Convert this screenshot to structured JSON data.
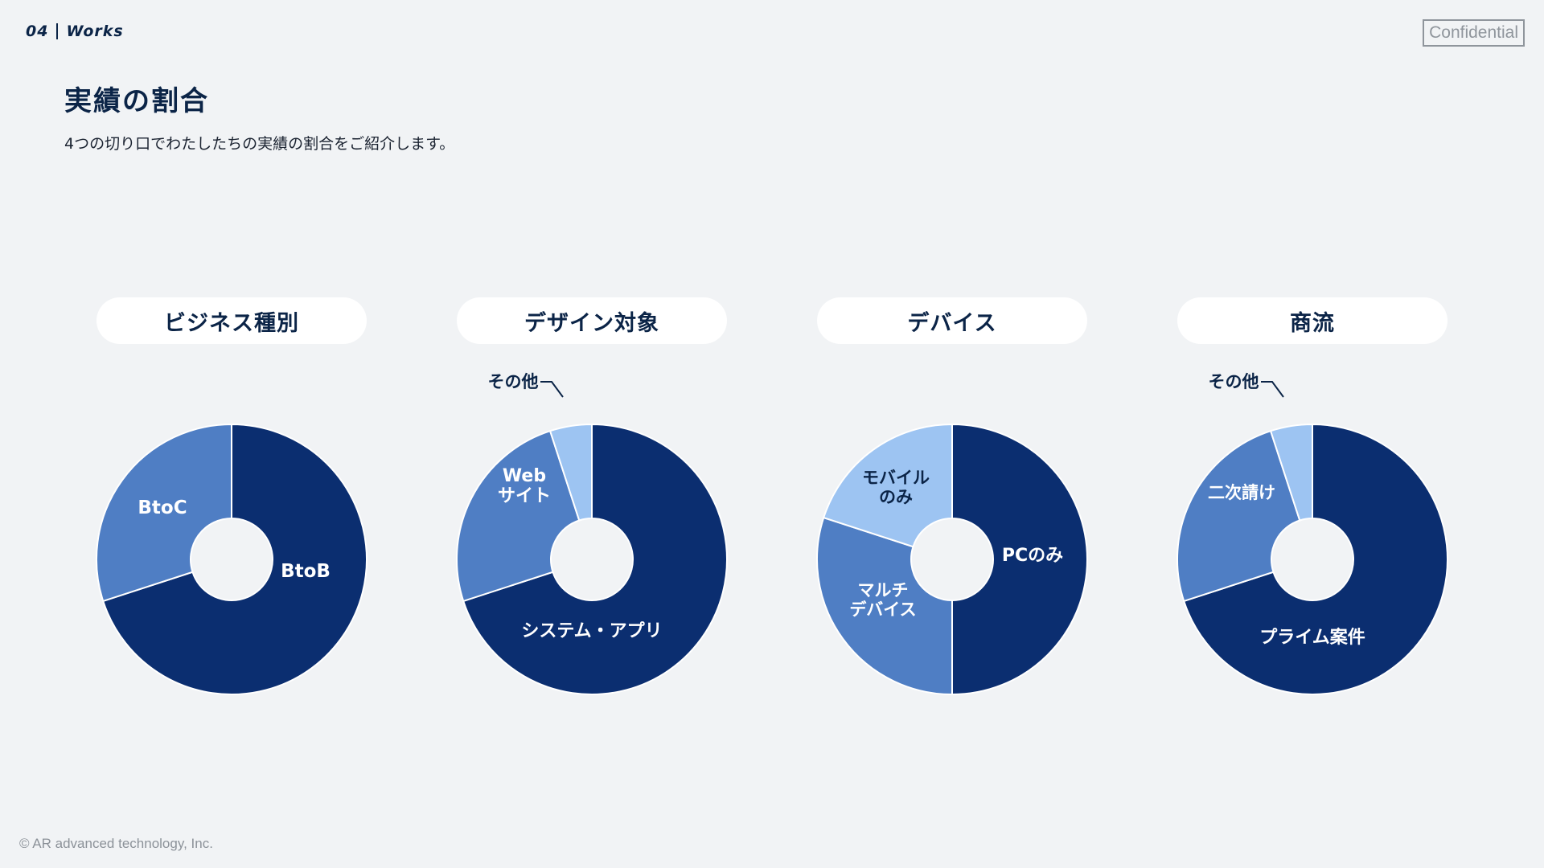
{
  "header": {
    "section_number": "04",
    "section_name": "Works",
    "badge": "Confidential"
  },
  "page": {
    "title": "実績の割合",
    "subtitle": "4つの切り口でわたしたちの実績の割合をご紹介します。"
  },
  "footer": {
    "copyright": "© AR advanced technology, Inc."
  },
  "colors": {
    "dark_navy": "#0b2e70",
    "mid_blue": "#4f7ec4",
    "light_blue": "#9dc4f2",
    "background": "#f1f3f5"
  },
  "chart_data": [
    {
      "type": "pie",
      "title": "ビジネス種別",
      "series": [
        {
          "label": "BtoB",
          "value": 70,
          "color": "#0b2e70"
        },
        {
          "label": "BtoC",
          "value": 30,
          "color": "#4f7ec4"
        }
      ]
    },
    {
      "type": "pie",
      "title": "デザイン対象",
      "series": [
        {
          "label": "システム・アプリ",
          "value": 70,
          "color": "#0b2e70"
        },
        {
          "label": "Webサイト",
          "value": 25,
          "color": "#4f7ec4"
        },
        {
          "label": "その他",
          "value": 5,
          "color": "#9dc4f2"
        }
      ]
    },
    {
      "type": "pie",
      "title": "デバイス",
      "series": [
        {
          "label": "PCのみ",
          "value": 50,
          "color": "#0b2e70"
        },
        {
          "label": "マルチデバイス",
          "value": 30,
          "color": "#4f7ec4"
        },
        {
          "label": "モバイルのみ",
          "value": 20,
          "color": "#9dc4f2"
        }
      ]
    },
    {
      "type": "pie",
      "title": "商流",
      "series": [
        {
          "label": "プライム案件",
          "value": 70,
          "color": "#0b2e70"
        },
        {
          "label": "二次請け",
          "value": 25,
          "color": "#4f7ec4"
        },
        {
          "label": "その他",
          "value": 5,
          "color": "#9dc4f2"
        }
      ]
    }
  ]
}
